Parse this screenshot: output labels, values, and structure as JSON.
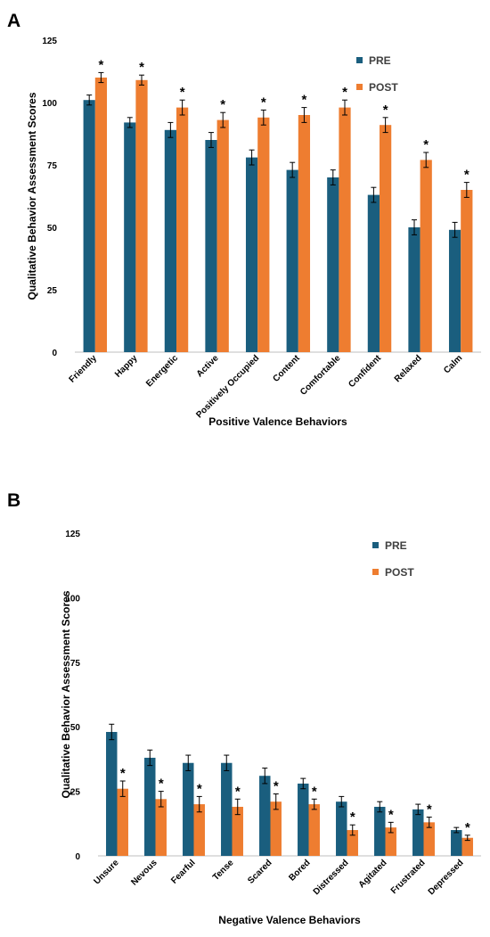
{
  "colors": {
    "pre": "#1a5e7e",
    "post": "#ee7d30",
    "axis": "#bfbfbf",
    "error": "#000000"
  },
  "chart_data": [
    {
      "type": "bar",
      "panel": "A",
      "title": "",
      "xlabel": "Positive Valence Behaviors",
      "ylabel": "Qualitative Behavior Assessment Scores",
      "ylim": [
        0,
        125
      ],
      "yticks": [
        0,
        25,
        50,
        75,
        100,
        125
      ],
      "grid": false,
      "legend": "top-right",
      "categories": [
        "Friendly",
        "Happy",
        "Energetic",
        "Active",
        "Positively Occupied",
        "Content",
        "Comfortable",
        "Confident",
        "Relaxed",
        "Calm"
      ],
      "series": [
        {
          "name": "PRE",
          "values": [
            101,
            92,
            89,
            85,
            78,
            73,
            70,
            63,
            50,
            49
          ],
          "errors": [
            2,
            2,
            3,
            3,
            3,
            3,
            3,
            3,
            3,
            3
          ]
        },
        {
          "name": "POST",
          "values": [
            110,
            109,
            98,
            93,
            94,
            95,
            98,
            91,
            77,
            65
          ],
          "errors": [
            2,
            2,
            3,
            3,
            3,
            3,
            3,
            3,
            3,
            3
          ]
        }
      ],
      "significance": [
        "*",
        "*",
        "*",
        "*",
        "*",
        "*",
        "*",
        "*",
        "*",
        "*"
      ]
    },
    {
      "type": "bar",
      "panel": "B",
      "title": "",
      "xlabel": "Negative Valence Behaviors",
      "ylabel": "Qualitative Behavior Assessment Scores",
      "ylim": [
        0,
        125
      ],
      "yticks": [
        0,
        25,
        50,
        75,
        100,
        125
      ],
      "grid": false,
      "legend": "top-right",
      "categories": [
        "Unsure",
        "Nevous",
        "Fearful",
        "Tense",
        "Scared",
        "Bored",
        "Distressed",
        "Agitated",
        "Frustrated",
        "Depressed"
      ],
      "series": [
        {
          "name": "PRE",
          "values": [
            48,
            38,
            36,
            36,
            31,
            28,
            21,
            19,
            18,
            10
          ],
          "errors": [
            3,
            3,
            3,
            3,
            3,
            2,
            2,
            2,
            2,
            1
          ]
        },
        {
          "name": "POST",
          "values": [
            26,
            22,
            20,
            19,
            21,
            20,
            10,
            11,
            13,
            7
          ],
          "errors": [
            3,
            3,
            3,
            3,
            3,
            2,
            2,
            2,
            2,
            1
          ]
        }
      ],
      "significance": [
        "*",
        "*",
        "*",
        "*",
        "*",
        "*",
        "*",
        "*",
        "*",
        "*"
      ]
    }
  ]
}
